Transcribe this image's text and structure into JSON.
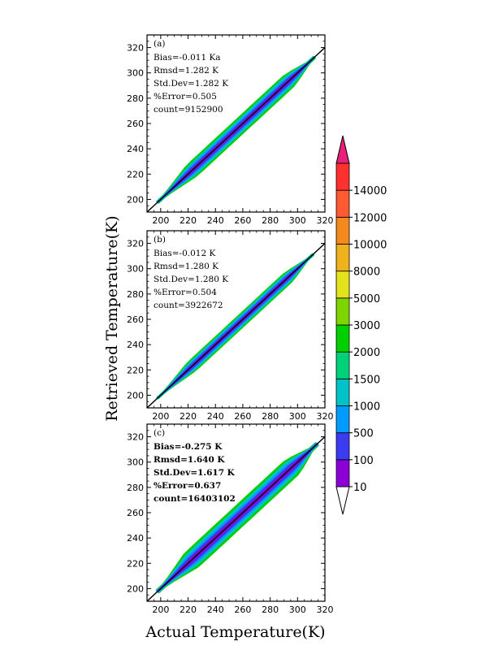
{
  "chart_data": [
    {
      "type": "heatmap",
      "panel": "(a)",
      "stats_bold": false,
      "stats": [
        "Bias=-0.011 Ka",
        "Rmsd=1.282 K",
        "Std.Dev=1.282 K",
        "%Error=0.505",
        "count=9152900"
      ],
      "x_ticks": [
        "200",
        "220",
        "240",
        "260",
        "280",
        "300",
        "320"
      ],
      "y_ticks": [
        "200",
        "220",
        "240",
        "260",
        "280",
        "300",
        "320"
      ],
      "xlim": [
        190,
        320
      ],
      "ylim": [
        190,
        330
      ],
      "data_range": [
        197,
        313
      ],
      "spread_k": [
        1.5,
        3.2,
        4.8,
        6.5,
        8.5
      ]
    },
    {
      "type": "heatmap",
      "panel": "(b)",
      "stats_bold": false,
      "stats": [
        "Bias=-0.012 K",
        "Rmsd=1.280 K",
        "Std.Dev=1.280 K",
        "%Error=0.504",
        "count=3922672"
      ],
      "x_ticks": [
        "200",
        "220",
        "240",
        "260",
        "280",
        "300",
        "320"
      ],
      "y_ticks": [
        "200",
        "220",
        "240",
        "260",
        "280",
        "300",
        "320"
      ],
      "xlim": [
        190,
        320
      ],
      "ylim": [
        190,
        330
      ],
      "data_range": [
        197,
        312
      ],
      "spread_k": [
        1.2,
        2.6,
        4.0,
        5.3,
        6.8
      ]
    },
    {
      "type": "heatmap",
      "panel": "(c)",
      "stats_bold": true,
      "stats": [
        "Bias=-0.275 K",
        "Rmsd=1.640 K",
        "Std.Dev=1.617 K",
        "%Error=0.637",
        "count=16403102"
      ],
      "x_ticks": [
        "200",
        "220",
        "240",
        "260",
        "280",
        "300",
        "320"
      ],
      "y_ticks": [
        "200",
        "220",
        "240",
        "260",
        "280",
        "300",
        "320"
      ],
      "xlim": [
        190,
        320
      ],
      "ylim": [
        190,
        330
      ],
      "data_range": [
        197,
        315
      ],
      "spread_k": [
        2.2,
        4.2,
        6.2,
        8.5,
        11.0
      ]
    }
  ],
  "axes": {
    "xlabel": "Actual Temperature(K)",
    "ylabel": "Retrieved Temperature(K)"
  },
  "colorbar": {
    "labels": [
      "10",
      "100",
      "500",
      "1000",
      "1500",
      "2000",
      "3000",
      "5000",
      "8000",
      "10000",
      "12000",
      "14000"
    ],
    "colors": [
      "#8a00d6",
      "#3b3bf2",
      "#009bff",
      "#00c3c8",
      "#00d27a",
      "#00cf00",
      "#7fd400",
      "#e3e21c",
      "#f0b21c",
      "#f48a1e",
      "#ff5a32",
      "#ff3030"
    ],
    "over_color": "#e8207a",
    "under_color": "#ffffff"
  }
}
